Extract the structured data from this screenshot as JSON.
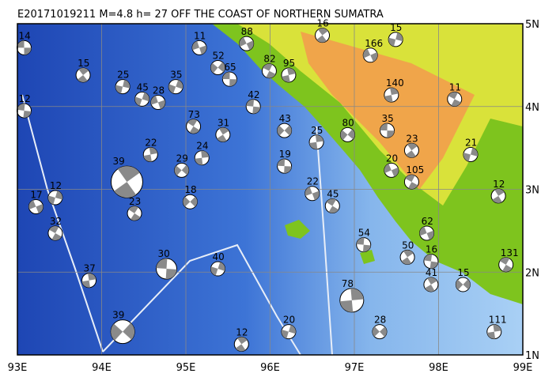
{
  "title": "E20171019211 M=4.8 h= 27 OFF THE COAST OF NORTHERN SUMATRA",
  "lonlim": [
    93,
    99
  ],
  "latlim": [
    1,
    5
  ],
  "lonticks": [
    {
      "value": 93,
      "label": "93E"
    },
    {
      "value": 94,
      "label": "94E"
    },
    {
      "value": 95,
      "label": "95E"
    },
    {
      "value": 96,
      "label": "96E"
    },
    {
      "value": 97,
      "label": "97E"
    },
    {
      "value": 98,
      "label": "98E"
    },
    {
      "value": 99,
      "label": "99E"
    }
  ],
  "latticks": [
    {
      "value": 1,
      "label": "1N"
    },
    {
      "value": 2,
      "label": "2N"
    },
    {
      "value": 3,
      "label": "3N"
    },
    {
      "value": 4,
      "label": "4N"
    },
    {
      "value": 5,
      "label": "5N"
    }
  ],
  "events": [
    {
      "lon": 93.08,
      "lat": 4.71,
      "depth": "14"
    },
    {
      "lon": 93.78,
      "lat": 4.38,
      "depth": "15"
    },
    {
      "lon": 94.25,
      "lat": 4.24,
      "depth": "25"
    },
    {
      "lon": 95.72,
      "lat": 4.76,
      "depth": "88"
    },
    {
      "lon": 95.99,
      "lat": 4.43,
      "depth": "82"
    },
    {
      "lon": 96.22,
      "lat": 4.38,
      "depth": "95"
    },
    {
      "lon": 95.38,
      "lat": 4.47,
      "depth": "52"
    },
    {
      "lon": 95.52,
      "lat": 4.33,
      "depth": "65"
    },
    {
      "lon": 96.62,
      "lat": 4.86,
      "depth": "16"
    },
    {
      "lon": 97.49,
      "lat": 4.81,
      "depth": "15"
    },
    {
      "lon": 97.19,
      "lat": 4.62,
      "depth": "166"
    },
    {
      "lon": 98.19,
      "lat": 4.09,
      "depth": "11"
    },
    {
      "lon": 97.44,
      "lat": 4.14,
      "depth": "140"
    },
    {
      "lon": 96.92,
      "lat": 3.66,
      "depth": "80"
    },
    {
      "lon": 97.39,
      "lat": 3.71,
      "depth": "35"
    },
    {
      "lon": 97.68,
      "lat": 3.47,
      "depth": "23"
    },
    {
      "lon": 98.38,
      "lat": 3.42,
      "depth": "21"
    },
    {
      "lon": 97.44,
      "lat": 3.23,
      "depth": "20"
    },
    {
      "lon": 97.68,
      "lat": 3.09,
      "depth": "105"
    },
    {
      "lon": 94.58,
      "lat": 3.42,
      "depth": "22"
    },
    {
      "lon": 94.95,
      "lat": 3.23,
      "depth": "29"
    },
    {
      "lon": 96.17,
      "lat": 3.28,
      "depth": "19"
    },
    {
      "lon": 94.3,
      "lat": 3.09,
      "depth": "39"
    },
    {
      "lon": 93.45,
      "lat": 2.9,
      "depth": "12"
    },
    {
      "lon": 93.22,
      "lat": 2.79,
      "depth": "17"
    },
    {
      "lon": 93.45,
      "lat": 2.47,
      "depth": "32"
    },
    {
      "lon": 93.85,
      "lat": 1.9,
      "depth": "37"
    },
    {
      "lon": 94.25,
      "lat": 1.28,
      "depth": "39"
    },
    {
      "lon": 94.77,
      "lat": 2.04,
      "depth": "30"
    },
    {
      "lon": 95.66,
      "lat": 1.13,
      "depth": "12"
    },
    {
      "lon": 96.22,
      "lat": 1.28,
      "depth": "20"
    },
    {
      "lon": 97.86,
      "lat": 2.47,
      "depth": "62"
    },
    {
      "lon": 98.8,
      "lat": 2.09,
      "depth": "131"
    },
    {
      "lon": 98.66,
      "lat": 1.28,
      "depth": "111"
    },
    {
      "lon": 98.29,
      "lat": 1.85,
      "depth": "15"
    },
    {
      "lon": 97.11,
      "lat": 2.33,
      "depth": "54"
    },
    {
      "lon": 97.63,
      "lat": 2.18,
      "depth": "50"
    },
    {
      "lon": 95.38,
      "lat": 2.04,
      "depth": "40"
    },
    {
      "lon": 96.5,
      "lat": 2.95,
      "depth": "22"
    },
    {
      "lon": 96.74,
      "lat": 2.8,
      "depth": "45"
    },
    {
      "lon": 96.55,
      "lat": 3.57,
      "depth": "25"
    },
    {
      "lon": 96.17,
      "lat": 3.71,
      "depth": "43"
    },
    {
      "lon": 95.8,
      "lat": 4.0,
      "depth": "42"
    },
    {
      "lon": 95.44,
      "lat": 3.66,
      "depth": "31"
    },
    {
      "lon": 94.48,
      "lat": 4.09,
      "depth": "45"
    },
    {
      "lon": 94.67,
      "lat": 4.05,
      "depth": "28"
    },
    {
      "lon": 95.09,
      "lat": 3.76,
      "depth": "73"
    },
    {
      "lon": 95.19,
      "lat": 3.38,
      "depth": "24"
    },
    {
      "lon": 95.05,
      "lat": 2.85,
      "depth": "18"
    },
    {
      "lon": 93.08,
      "lat": 3.95,
      "depth": "12"
    },
    {
      "lon": 98.71,
      "lat": 2.92,
      "depth": "12"
    },
    {
      "lon": 94.88,
      "lat": 4.24,
      "depth": "35"
    },
    {
      "lon": 95.16,
      "lat": 4.71,
      "depth": "11"
    },
    {
      "lon": 94.39,
      "lat": 2.71,
      "depth": "23"
    },
    {
      "lon": 96.97,
      "lat": 1.66,
      "depth": "78"
    },
    {
      "lon": 97.3,
      "lat": 1.28,
      "depth": "28"
    },
    {
      "lon": 97.91,
      "lat": 2.13,
      "depth": "16"
    },
    {
      "lon": 97.91,
      "lat": 1.85,
      "depth": "41"
    }
  ]
}
